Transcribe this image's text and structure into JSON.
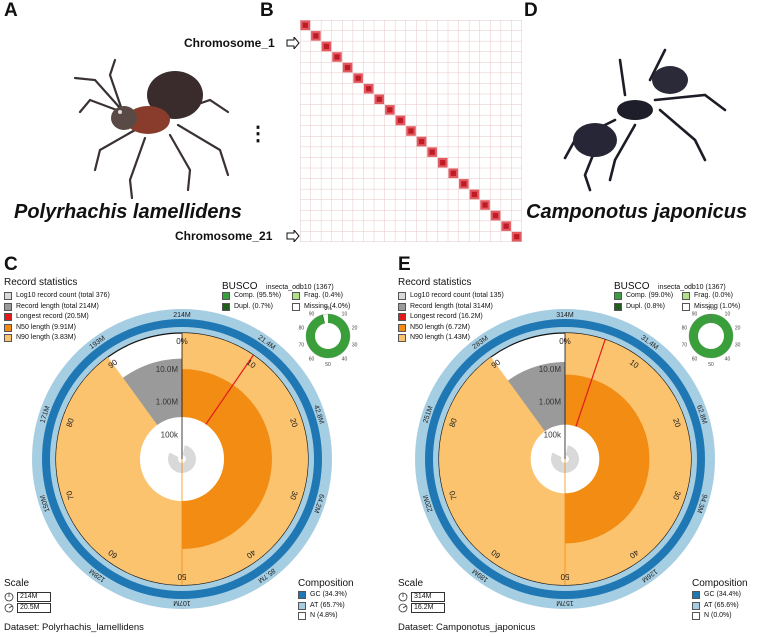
{
  "panels": {
    "a": {
      "letter": "A",
      "species": "Polyrhachis lamellidens"
    },
    "b": {
      "letter": "B",
      "chr_first": "Chromosome_1",
      "chr_last": "Chromosome_21",
      "ellipsis": "⋮",
      "chromosome_count": 21
    },
    "d": {
      "letter": "D",
      "species": "Camponotus japonicus"
    },
    "c": {
      "letter": "C",
      "record_stats_title": "Record statistics",
      "legend": [
        {
          "label": "Log10 record count (total 376)",
          "color": "#d9d9d9"
        },
        {
          "label": "Record length (total 214M)",
          "color": "#9a9a9a"
        },
        {
          "label": "Longest record (20.5M)",
          "color": "#e31a1c"
        },
        {
          "label": "N50 length (9.91M)",
          "color": "#f28c13"
        },
        {
          "label": "N90 length (3.83M)",
          "color": "#fcc36e"
        }
      ],
      "busco_title": "BUSCO",
      "busco_db": "insecta_odb10 (1367)",
      "busco_items": [
        {
          "label": "Comp. (95.5%)",
          "color": "#3a9e3a"
        },
        {
          "label": "Frag. (0.4%)",
          "color": "#b2df8a"
        },
        {
          "label": "Dupl. (0.7%)",
          "color": "#1f5e1f"
        },
        {
          "label": "Missing (4.0%)",
          "color": "#ffffff"
        }
      ],
      "busco_values": {
        "complete": 95.5,
        "fragmented": 0.4,
        "duplicated": 0.7,
        "missing": 4.0
      },
      "scale_title": "Scale",
      "scale_values": [
        "214M",
        "20.5M"
      ],
      "composition_title": "Composition",
      "composition": [
        {
          "label": "GC (34.3%)",
          "color": "#1f78b4"
        },
        {
          "label": "AT (65.7%)",
          "color": "#a6cee3"
        },
        {
          "label": "N (4.8%)",
          "color": "#ffffff"
        }
      ],
      "dataset": "Dataset: Polyrhachis_lamellidens",
      "outer_ticks": [
        "214M",
        "21.4M",
        "42.8M",
        "64.2M",
        "85.7M",
        "107M",
        "128M",
        "150M",
        "171M",
        "193M"
      ],
      "inner_ticks": [
        "0%",
        "10",
        "20",
        "30",
        "40",
        "50",
        "60",
        "70",
        "80",
        "90"
      ],
      "log_ticks": [
        "100k",
        "1.00M",
        "10.0M"
      ],
      "values": {
        "total_mb": 214,
        "longest_mb": 20.5,
        "n50_mb": 9.91,
        "n90_mb": 3.83,
        "records": 376,
        "gc_pct": 34.3,
        "n_pct": 4.8
      }
    },
    "e": {
      "letter": "E",
      "record_stats_title": "Record statistics",
      "legend": [
        {
          "label": "Log10 record count (total 135)",
          "color": "#d9d9d9"
        },
        {
          "label": "Record length (total 314M)",
          "color": "#9a9a9a"
        },
        {
          "label": "Longest record (16.2M)",
          "color": "#e31a1c"
        },
        {
          "label": "N50 length (6.72M)",
          "color": "#f28c13"
        },
        {
          "label": "N90 length (1.43M)",
          "color": "#fcc36e"
        }
      ],
      "busco_title": "BUSCO",
      "busco_db": "insecta_odb10 (1367)",
      "busco_items": [
        {
          "label": "Comp. (99.0%)",
          "color": "#3a9e3a"
        },
        {
          "label": "Frag. (0.0%)",
          "color": "#b2df8a"
        },
        {
          "label": "Dupl. (0.8%)",
          "color": "#1f5e1f"
        },
        {
          "label": "Missing (1.0%)",
          "color": "#ffffff"
        }
      ],
      "busco_values": {
        "complete": 99.0,
        "fragmented": 0.0,
        "duplicated": 0.8,
        "missing": 1.0
      },
      "scale_title": "Scale",
      "scale_values": [
        "314M",
        "16.2M"
      ],
      "composition_title": "Composition",
      "composition": [
        {
          "label": "GC (34.4%)",
          "color": "#1f78b4"
        },
        {
          "label": "AT (65.6%)",
          "color": "#a6cee3"
        },
        {
          "label": "N (0.0%)",
          "color": "#ffffff"
        }
      ],
      "dataset": "Dataset: Camponotus_japonicus",
      "outer_ticks": [
        "314M",
        "31.4M",
        "62.8M",
        "94.3M",
        "126M",
        "157M",
        "189M",
        "220M",
        "251M",
        "283M"
      ],
      "inner_ticks": [
        "0%",
        "10",
        "20",
        "30",
        "40",
        "50",
        "60",
        "70",
        "80",
        "90"
      ],
      "log_ticks": [
        "100k",
        "1.00M",
        "10.0M"
      ],
      "values": {
        "total_mb": 314,
        "longest_mb": 16.2,
        "n50_mb": 6.72,
        "n90_mb": 1.43,
        "records": 135,
        "gc_pct": 34.4,
        "n_pct": 0.0
      }
    }
  },
  "colors": {
    "gc": "#1f78b4",
    "at": "#a6cee3",
    "n90": "#fcc36e",
    "n50": "#f28c13",
    "longest": "#e31a1c",
    "length": "#9a9a9a",
    "count": "#d9d9d9",
    "hic": "#d7232b"
  }
}
